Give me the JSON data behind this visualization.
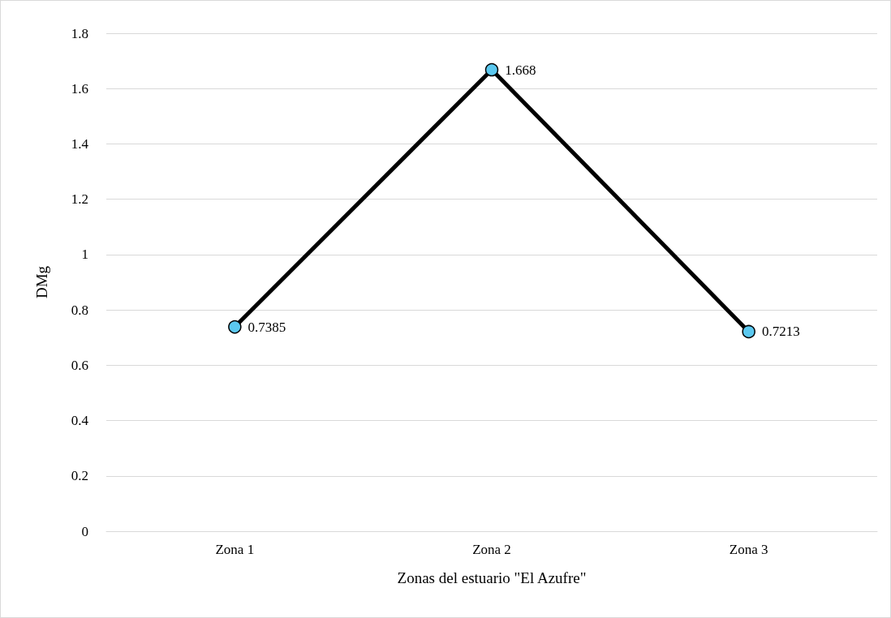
{
  "chart_data": {
    "type": "line",
    "xlabel": "Zonas del estuario \"El Azufre\"",
    "ylabel": "DMg",
    "categories": [
      "Zona 1",
      "Zona 2",
      "Zona 3"
    ],
    "series": [
      {
        "color": "#000000",
        "values": [
          0.7385,
          1.668,
          0.7213
        ]
      }
    ],
    "ylim": [
      0,
      1.8
    ],
    "yticks": [
      0,
      0.2,
      0.4,
      0.6,
      0.8,
      1,
      1.2,
      1.4,
      1.6,
      1.8
    ],
    "grid": "y",
    "marker": "circle",
    "line_style": "solid",
    "data_labels": true
  }
}
